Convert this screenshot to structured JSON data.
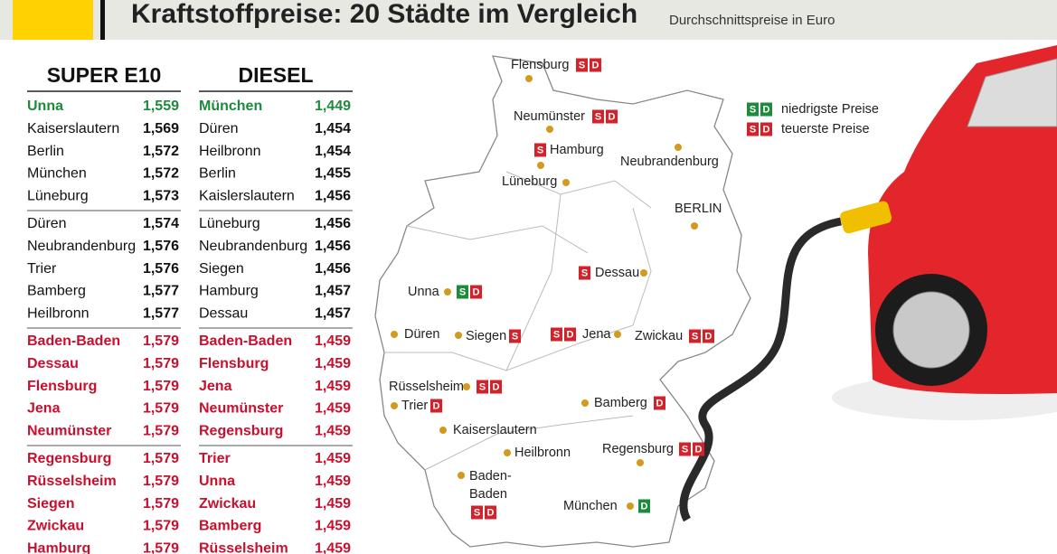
{
  "header": {
    "title": "Kraftstoffpreise: 20 Städte im Vergleich",
    "subtitle": "Durchschnittspreise in Euro"
  },
  "tables": [
    {
      "title": "SUPER E10",
      "rows": [
        {
          "city": "Unna",
          "price": "1,559",
          "color": "#1e8a3c"
        },
        {
          "city": "Kaiserslautern",
          "price": "1,569",
          "color": "#111111"
        },
        {
          "city": "Berlin",
          "price": "1,572",
          "color": "#111111"
        },
        {
          "city": "München",
          "price": "1,572",
          "color": "#111111"
        },
        {
          "city": "Lüneburg",
          "price": "1,573",
          "color": "#111111"
        },
        {
          "city": "Düren",
          "price": "1,574",
          "color": "#111111"
        },
        {
          "city": "Neubrandenburg",
          "price": "1,576",
          "color": "#111111"
        },
        {
          "city": "Trier",
          "price": "1,576",
          "color": "#111111"
        },
        {
          "city": "Bamberg",
          "price": "1,577",
          "color": "#111111"
        },
        {
          "city": "Heilbronn",
          "price": "1,577",
          "color": "#111111"
        },
        {
          "city": "Baden-Baden",
          "price": "1,579",
          "color": "#c8102e"
        },
        {
          "city": "Dessau",
          "price": "1,579",
          "color": "#c8102e"
        },
        {
          "city": "Flensburg",
          "price": "1,579",
          "color": "#c8102e"
        },
        {
          "city": "Jena",
          "price": "1,579",
          "color": "#c8102e"
        },
        {
          "city": "Neumünster",
          "price": "1,579",
          "color": "#c8102e"
        },
        {
          "city": "Regensburg",
          "price": "1,579",
          "color": "#c8102e"
        },
        {
          "city": "Rüsselsheim",
          "price": "1,579",
          "color": "#c8102e"
        },
        {
          "city": "Siegen",
          "price": "1,579",
          "color": "#c8102e"
        },
        {
          "city": "Zwickau",
          "price": "1,579",
          "color": "#c8102e"
        },
        {
          "city": "Hamburg",
          "price": "1,579",
          "color": "#c8102e"
        }
      ]
    },
    {
      "title": "DIESEL",
      "rows": [
        {
          "city": "München",
          "price": "1,449",
          "color": "#1e8a3c"
        },
        {
          "city": "Düren",
          "price": "1,454",
          "color": "#111111"
        },
        {
          "city": "Heilbronn",
          "price": "1,454",
          "color": "#111111"
        },
        {
          "city": "Berlin",
          "price": "1,455",
          "color": "#111111"
        },
        {
          "city": "Kaislerslautern",
          "price": "1,456",
          "color": "#111111"
        },
        {
          "city": "Lüneburg",
          "price": "1,456",
          "color": "#111111"
        },
        {
          "city": "Neubrandenburg",
          "price": "1,456",
          "color": "#111111"
        },
        {
          "city": "Siegen",
          "price": "1,456",
          "color": "#111111"
        },
        {
          "city": "Hamburg",
          "price": "1,457",
          "color": "#111111"
        },
        {
          "city": "Dessau",
          "price": "1,457",
          "color": "#111111"
        },
        {
          "city": "Baden-Baden",
          "price": "1,459",
          "color": "#c8102e"
        },
        {
          "city": "Flensburg",
          "price": "1,459",
          "color": "#c8102e"
        },
        {
          "city": "Jena",
          "price": "1,459",
          "color": "#c8102e"
        },
        {
          "city": "Neumünster",
          "price": "1,459",
          "color": "#c8102e"
        },
        {
          "city": "Regensburg",
          "price": "1,459",
          "color": "#c8102e"
        },
        {
          "city": "Trier",
          "price": "1,459",
          "color": "#c8102e"
        },
        {
          "city": "Unna",
          "price": "1,459",
          "color": "#c8102e"
        },
        {
          "city": "Zwickau",
          "price": "1,459",
          "color": "#c8102e"
        },
        {
          "city": "Bamberg",
          "price": "1,459",
          "color": "#c8102e"
        },
        {
          "city": "Rüsselsheim",
          "price": "1,459",
          "color": "#c8102e"
        }
      ]
    }
  ],
  "legend": [
    {
      "badges": [
        {
          "text": "S",
          "color": "#1e8a3c"
        },
        {
          "text": "D",
          "color": "#1e8a3c"
        }
      ],
      "label": "niedrigste Preise"
    },
    {
      "badges": [
        {
          "text": "S",
          "color": "#d2232a"
        },
        {
          "text": "D",
          "color": "#d2232a"
        }
      ],
      "label": "teuerste Preise"
    }
  ],
  "map": {
    "cities": [
      {
        "label_lines": [
          "Flensburg"
        ],
        "badges": [
          {
            "text": "S",
            "color": "#d2232a"
          },
          {
            "text": "D",
            "color": "#d2232a"
          }
        ]
      },
      {
        "label_lines": [
          "Neumünster"
        ],
        "badges": [
          {
            "text": "S",
            "color": "#d2232a"
          },
          {
            "text": "D",
            "color": "#d2232a"
          }
        ]
      },
      {
        "label_lines": [
          "Hamburg"
        ],
        "badges": [
          {
            "text": "S",
            "color": "#d2232a"
          }
        ]
      },
      {
        "label_lines": [
          "Neubrandenburg"
        ],
        "badges": []
      },
      {
        "label_lines": [
          "Lüneburg"
        ],
        "badges": []
      },
      {
        "label_lines": [
          "BERLIN"
        ],
        "badges": []
      },
      {
        "label_lines": [
          "Dessau"
        ],
        "badges": [
          {
            "text": "S",
            "color": "#d2232a"
          }
        ]
      },
      {
        "label_lines": [
          "Unna"
        ],
        "badges": [
          {
            "text": "S",
            "color": "#1e8a3c"
          },
          {
            "text": "D",
            "color": "#d2232a"
          }
        ]
      },
      {
        "label_lines": [
          "Düren"
        ],
        "badges": []
      },
      {
        "label_lines": [
          "Siegen"
        ],
        "badges": [
          {
            "text": "S",
            "color": "#d2232a"
          }
        ]
      },
      {
        "label_lines": [
          "Jena"
        ],
        "badges": [
          {
            "text": "S",
            "color": "#d2232a"
          },
          {
            "text": "D",
            "color": "#d2232a"
          }
        ]
      },
      {
        "label_lines": [
          "Zwickau"
        ],
        "badges": [
          {
            "text": "S",
            "color": "#d2232a"
          },
          {
            "text": "D",
            "color": "#d2232a"
          }
        ]
      },
      {
        "label_lines": [
          "Rüsselsheim"
        ],
        "badges": [
          {
            "text": "S",
            "color": "#d2232a"
          },
          {
            "text": "D",
            "color": "#d2232a"
          }
        ]
      },
      {
        "label_lines": [
          "Trier"
        ],
        "badges": [
          {
            "text": "D",
            "color": "#d2232a"
          }
        ]
      },
      {
        "label_lines": [
          "Bamberg"
        ],
        "badges": [
          {
            "text": "D",
            "color": "#d2232a"
          }
        ]
      },
      {
        "label_lines": [
          "Kaiserslautern"
        ],
        "badges": []
      },
      {
        "label_lines": [
          "Heilbronn"
        ],
        "badges": []
      },
      {
        "label_lines": [
          "Regensburg"
        ],
        "badges": [
          {
            "text": "S",
            "color": "#d2232a"
          },
          {
            "text": "D",
            "color": "#d2232a"
          }
        ]
      },
      {
        "label_lines": [
          "Baden-",
          "Baden"
        ],
        "badges": [
          {
            "text": "S",
            "color": "#d2232a"
          },
          {
            "text": "D",
            "color": "#d2232a"
          }
        ]
      },
      {
        "label_lines": [
          "München"
        ],
        "badges": [
          {
            "text": "D",
            "color": "#1e8a3c"
          }
        ]
      }
    ]
  }
}
